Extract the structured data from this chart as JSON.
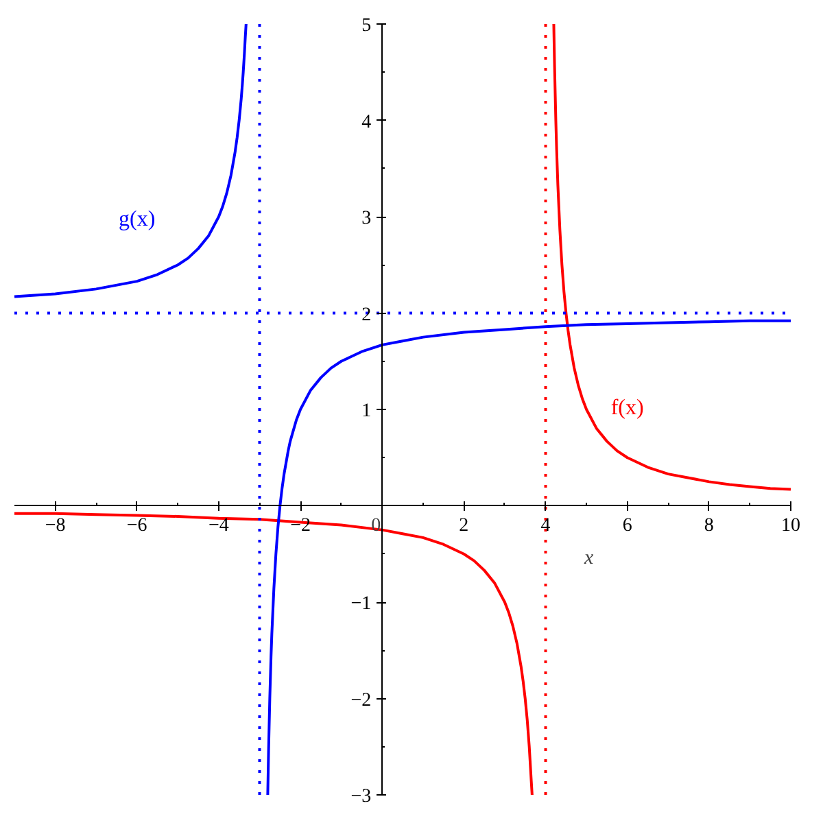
{
  "chart_data": {
    "type": "line",
    "xlim": [
      -9,
      10
    ],
    "ylim": [
      -3,
      5
    ],
    "xticks": [
      {
        "value": -8,
        "label": "−8"
      },
      {
        "value": -6,
        "label": "−6"
      },
      {
        "value": -4,
        "label": "−4"
      },
      {
        "value": -2,
        "label": "−2"
      },
      0,
      2,
      4,
      6,
      8,
      10
    ],
    "yticks": [
      {
        "value": -3,
        "label": "−3"
      },
      {
        "value": -2,
        "label": "−2"
      },
      {
        "value": -1,
        "label": "−1"
      },
      {
        "value": 0,
        "label": null
      },
      1,
      2,
      3,
      4,
      5
    ],
    "xlabel": "x",
    "series": [
      {
        "name": "f(x)",
        "color": "#ff0000",
        "x": [
          -9,
          -8,
          -7,
          -6,
          -5,
          -4,
          -3,
          -2,
          -1,
          0,
          0.5,
          1,
          1.5,
          2,
          2.25,
          2.5,
          2.75,
          3,
          3.1,
          3.2,
          3.3,
          3.4,
          3.45,
          3.5,
          3.55,
          3.6,
          3.65,
          3.67,
          4,
          4.2,
          4.22,
          4.25,
          4.27,
          4.3,
          4.35,
          4.4,
          4.45,
          4.5,
          4.55,
          4.6,
          4.7,
          4.8,
          4.9,
          5,
          5.25,
          5.5,
          5.75,
          6,
          6.5,
          7,
          7.5,
          8,
          8.5,
          9,
          9.5,
          10
        ],
        "values": [
          -0.08,
          -0.08,
          -0.09,
          -0.1,
          -0.11,
          -0.13,
          -0.14,
          -0.17,
          -0.2,
          -0.25,
          -0.29,
          -0.33,
          -0.4,
          -0.5,
          -0.57,
          -0.67,
          -0.8,
          -1,
          -1.11,
          -1.25,
          -1.43,
          -1.67,
          -1.82,
          -2,
          -2.22,
          -2.5,
          -2.86,
          -3,
          null,
          5,
          4.55,
          4,
          3.7,
          3.33,
          2.86,
          2.5,
          2.22,
          2,
          1.82,
          1.67,
          1.43,
          1.25,
          1.11,
          1,
          0.8,
          0.67,
          0.57,
          0.5,
          0.4,
          0.33,
          0.29,
          0.25,
          0.22,
          0.2,
          0.18,
          0.17
        ]
      },
      {
        "name": "g(x)",
        "color": "#0000ff",
        "x": [
          -9,
          -8,
          -7,
          -6,
          -5.5,
          -5,
          -4.75,
          -4.5,
          -4.25,
          -4,
          -3.9,
          -3.8,
          -3.7,
          -3.6,
          -3.55,
          -3.5,
          -3.45,
          -3.42,
          -3.4,
          -3.37,
          -3.35,
          -3.33,
          -3,
          -2.8,
          -2.78,
          -2.75,
          -2.72,
          -2.7,
          -2.65,
          -2.6,
          -2.55,
          -2.5,
          -2.45,
          -2.4,
          -2.3,
          -2.25,
          -2.1,
          -2,
          -1.75,
          -1.5,
          -1.25,
          -1,
          -0.5,
          0,
          0.5,
          1,
          2,
          3,
          4,
          5,
          6,
          7,
          8,
          9,
          10
        ],
        "values": [
          2.17,
          2.2,
          2.25,
          2.33,
          2.4,
          2.5,
          2.57,
          2.67,
          2.8,
          3,
          3.11,
          3.25,
          3.43,
          3.67,
          3.82,
          4,
          4.22,
          4.38,
          4.5,
          4.7,
          4.86,
          5,
          null,
          -3,
          -2.55,
          -2,
          -1.57,
          -1.33,
          -0.86,
          -0.5,
          -0.22,
          0,
          0.18,
          0.33,
          0.57,
          0.67,
          0.89,
          1,
          1.2,
          1.33,
          1.43,
          1.5,
          1.6,
          1.67,
          1.71,
          1.75,
          1.8,
          1.83,
          1.86,
          1.88,
          1.89,
          1.9,
          1.91,
          1.92,
          1.92
        ]
      }
    ],
    "ref_lines": [
      {
        "axis": "x",
        "value": -3,
        "color": "#0000ff",
        "line_style": "dotted"
      },
      {
        "axis": "y",
        "value": 2,
        "color": "#0000ff",
        "line_style": "dotted"
      },
      {
        "axis": "x",
        "value": 4,
        "color": "#ff0000",
        "line_style": "dotted"
      }
    ]
  }
}
